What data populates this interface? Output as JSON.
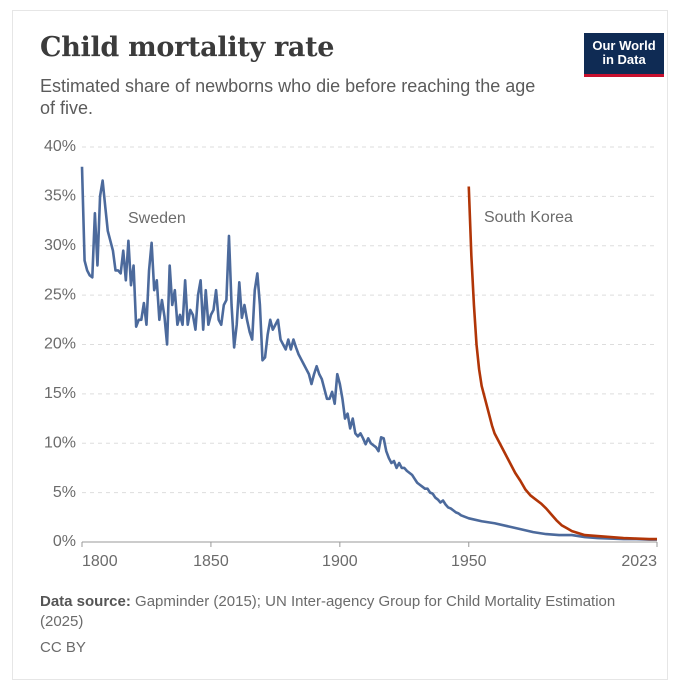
{
  "chart_data": {
    "type": "line",
    "title": "Child mortality rate",
    "subtitle": "Estimated share of newborns who die before reaching the age of five.",
    "logo": [
      "Our World",
      "in Data"
    ],
    "source_label": "Data source:",
    "source": "Gapminder (2015); UN Inter-agency Group for Child Mortality Estimation (2025)",
    "license": "CC BY",
    "xlim": [
      1800,
      2023
    ],
    "xticks": [
      1800,
      1850,
      1900,
      1950,
      2023
    ],
    "ylim": [
      0,
      40
    ],
    "yticks": [
      {
        "value": 0,
        "label": "0%"
      },
      {
        "value": 5,
        "label": "5%"
      },
      {
        "value": 10,
        "label": "10%"
      },
      {
        "value": 15,
        "label": "15%"
      },
      {
        "value": 20,
        "label": "20%"
      },
      {
        "value": 25,
        "label": "25%"
      },
      {
        "value": 30,
        "label": "30%"
      },
      {
        "value": 35,
        "label": "35%"
      },
      {
        "value": 40,
        "label": "40%"
      }
    ],
    "grid": true,
    "series": [
      {
        "name": "Sweden",
        "color": "#4c6a9c",
        "x": [
          1800,
          1801,
          1802,
          1803,
          1804,
          1805,
          1806,
          1807,
          1808,
          1809,
          1810,
          1811,
          1812,
          1813,
          1814,
          1815,
          1816,
          1817,
          1818,
          1819,
          1820,
          1821,
          1822,
          1823,
          1824,
          1825,
          1826,
          1827,
          1828,
          1829,
          1830,
          1831,
          1832,
          1833,
          1834,
          1835,
          1836,
          1837,
          1838,
          1839,
          1840,
          1841,
          1842,
          1843,
          1844,
          1845,
          1846,
          1847,
          1848,
          1849,
          1850,
          1851,
          1852,
          1853,
          1854,
          1855,
          1856,
          1857,
          1858,
          1859,
          1860,
          1861,
          1862,
          1863,
          1864,
          1865,
          1866,
          1867,
          1868,
          1869,
          1870,
          1871,
          1872,
          1873,
          1874,
          1875,
          1876,
          1877,
          1878,
          1879,
          1880,
          1881,
          1882,
          1883,
          1884,
          1885,
          1886,
          1887,
          1888,
          1889,
          1890,
          1891,
          1892,
          1893,
          1894,
          1895,
          1896,
          1897,
          1898,
          1899,
          1900,
          1901,
          1902,
          1903,
          1904,
          1905,
          1906,
          1907,
          1908,
          1909,
          1910,
          1911,
          1912,
          1913,
          1914,
          1915,
          1916,
          1917,
          1918,
          1919,
          1920,
          1921,
          1922,
          1923,
          1924,
          1925,
          1926,
          1927,
          1928,
          1929,
          1930,
          1931,
          1932,
          1933,
          1934,
          1935,
          1936,
          1937,
          1938,
          1939,
          1940,
          1941,
          1942,
          1943,
          1944,
          1945,
          1946,
          1947,
          1948,
          1949,
          1950,
          1955,
          1960,
          1965,
          1970,
          1975,
          1980,
          1985,
          1990,
          1995,
          2000,
          2005,
          2010,
          2015,
          2020,
          2023
        ],
        "values": [
          38,
          28.5,
          27.5,
          27,
          26.8,
          33.3,
          28,
          35,
          36.6,
          34,
          31.5,
          30.5,
          29.5,
          27.5,
          27.5,
          27.2,
          29.5,
          26.5,
          30.5,
          26,
          28,
          21.8,
          22.5,
          22.5,
          24.2,
          22,
          27.5,
          30.3,
          25.5,
          26.5,
          22.5,
          24.5,
          22.8,
          20,
          28,
          24,
          25.5,
          22,
          23,
          22,
          26.5,
          22,
          23.5,
          23,
          21.5,
          25,
          26.5,
          21.5,
          25.5,
          22,
          23,
          23.5,
          25.5,
          22.5,
          22,
          24,
          24.5,
          31,
          24,
          19.7,
          22,
          26.3,
          22.7,
          24,
          22.5,
          21.3,
          20.5,
          25.5,
          27.2,
          24,
          18.4,
          18.7,
          21,
          22.5,
          21.5,
          22,
          22.5,
          20.5,
          20,
          19.5,
          20.5,
          19.5,
          20.5,
          19.7,
          19,
          18.5,
          18,
          17.5,
          17,
          16,
          17,
          17.8,
          17,
          16.5,
          15.5,
          14.5,
          14.5,
          15.2,
          14,
          17,
          16,
          14.5,
          12.5,
          13,
          11.5,
          12.5,
          11,
          10.7,
          11,
          10.5,
          9.9,
          10.5,
          10,
          9.8,
          9.6,
          9.2,
          10.6,
          10.5,
          9.2,
          8.5,
          8,
          8.2,
          7.5,
          8,
          7.5,
          7.5,
          7.2,
          7,
          6.8,
          6.4,
          6,
          5.8,
          5.6,
          5.4,
          5.4,
          5,
          4.9,
          4.5,
          4.3,
          4,
          4.2,
          3.8,
          3.5,
          3.4,
          3.2,
          3,
          2.9,
          2.7,
          2.6,
          2.5,
          2.4,
          2.1,
          1.9,
          1.6,
          1.3,
          1,
          0.8,
          0.7,
          0.7,
          0.5,
          0.4,
          0.35,
          0.3,
          0.3,
          0.25,
          0.24
        ]
      },
      {
        "name": "South Korea",
        "color": "#b13507",
        "x": [
          1950,
          1951,
          1952,
          1953,
          1954,
          1955,
          1956,
          1957,
          1958,
          1959,
          1960,
          1962,
          1964,
          1966,
          1968,
          1970,
          1972,
          1974,
          1976,
          1978,
          1980,
          1982,
          1984,
          1986,
          1988,
          1990,
          1995,
          2000,
          2005,
          2010,
          2015,
          2020,
          2023
        ],
        "values": [
          36,
          29,
          24,
          20,
          17.5,
          15.8,
          14.8,
          13.8,
          12.8,
          11.8,
          11,
          10,
          9,
          8,
          7,
          6.2,
          5.3,
          4.7,
          4.3,
          3.9,
          3.4,
          2.8,
          2.2,
          1.7,
          1.4,
          1.1,
          0.7,
          0.6,
          0.5,
          0.4,
          0.35,
          0.3,
          0.3
        ]
      }
    ]
  }
}
